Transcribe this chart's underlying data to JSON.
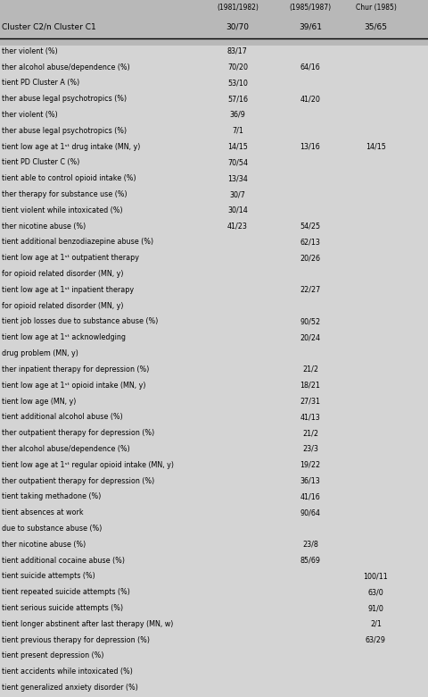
{
  "title_col1": "(1981/1982)",
  "title_col2": "(1985/1987)",
  "title_col3": "Chur (1985)",
  "header1": "Cluster C2/n Cluster C1",
  "header_cols": [
    "30/70",
    "39/61",
    "35/65"
  ],
  "bg_color": "#d4d4d4",
  "header_bg": "#b8b8b8",
  "rows": [
    {
      "label": "ther violent (%)",
      "col1": "83/17",
      "col2": "",
      "col3": ""
    },
    {
      "label": "ther alcohol abuse/dependence (%)",
      "col1": "70/20",
      "col2": "64/16",
      "col3": ""
    },
    {
      "label": "tient PD Cluster A (%)",
      "col1": "53/10",
      "col2": "",
      "col3": ""
    },
    {
      "label": "ther abuse legal psychotropics (%)",
      "col1": "57/16",
      "col2": "41/20",
      "col3": ""
    },
    {
      "label": "ther violent (%)",
      "col1": "36/9",
      "col2": "",
      "col3": ""
    },
    {
      "label": "ther abuse legal psychotropics (%)",
      "col1": "7/1",
      "col2": "",
      "col3": ""
    },
    {
      "label": "tient low age at 1ˢᵗ drug intake (MN, y)",
      "col1": "14/15",
      "col2": "13/16",
      "col3": "14/15"
    },
    {
      "label": "tient PD Cluster C (%)",
      "col1": "70/54",
      "col2": "",
      "col3": ""
    },
    {
      "label": "tient able to control opioid intake (%)",
      "col1": "13/34",
      "col2": "",
      "col3": ""
    },
    {
      "label": "ther therapy for substance use (%)",
      "col1": "30/7",
      "col2": "",
      "col3": ""
    },
    {
      "label": "tient violent while intoxicated (%)",
      "col1": "30/14",
      "col2": "",
      "col3": ""
    },
    {
      "label": "ther nicotine abuse (%)",
      "col1": "41/23",
      "col2": "54/25",
      "col3": ""
    },
    {
      "label": "tient additional benzodiazepine abuse (%)",
      "col1": "",
      "col2": "62/13",
      "col3": ""
    },
    {
      "label": "tient low age at 1ˢᵗ outpatient therapy",
      "col1": "",
      "col2": "20/26",
      "col3": ""
    },
    {
      "label": "for opioid related disorder (MN, y)",
      "col1": "",
      "col2": "",
      "col3": ""
    },
    {
      "label": "tient low age at 1ˢᵗ inpatient therapy",
      "col1": "",
      "col2": "22/27",
      "col3": ""
    },
    {
      "label": "for opioid related disorder (MN, y)",
      "col1": "",
      "col2": "",
      "col3": ""
    },
    {
      "label": "tient job losses due to substance abuse (%)",
      "col1": "",
      "col2": "90/52",
      "col3": ""
    },
    {
      "label": "tient low age at 1ˢᵗ acknowledging",
      "col1": "",
      "col2": "20/24",
      "col3": ""
    },
    {
      "label": "drug problem (MN, y)",
      "col1": "",
      "col2": "",
      "col3": ""
    },
    {
      "label": "ther inpatient therapy for depression (%)",
      "col1": "",
      "col2": "21/2",
      "col3": ""
    },
    {
      "label": "tient low age at 1ˢᵗ opioid intake (MN, y)",
      "col1": "",
      "col2": "18/21",
      "col3": ""
    },
    {
      "label": "tient low age (MN, y)",
      "col1": "",
      "col2": "27/31",
      "col3": ""
    },
    {
      "label": "tient additional alcohol abuse (%)",
      "col1": "",
      "col2": "41/13",
      "col3": ""
    },
    {
      "label": "ther outpatient therapy for depression (%)",
      "col1": "",
      "col2": "21/2",
      "col3": ""
    },
    {
      "label": "ther alcohol abuse/dependence (%)",
      "col1": "",
      "col2": "23/3",
      "col3": ""
    },
    {
      "label": "tient low age at 1ˢᵗ regular opioid intake (MN, y)",
      "col1": "",
      "col2": "19/22",
      "col3": ""
    },
    {
      "label": "ther outpatient therapy for depression (%)",
      "col1": "",
      "col2": "36/13",
      "col3": ""
    },
    {
      "label": "tient taking methadone (%)",
      "col1": "",
      "col2": "41/16",
      "col3": ""
    },
    {
      "label": "tient absences at work",
      "col1": "",
      "col2": "90/64",
      "col3": ""
    },
    {
      "label": "due to substance abuse (%)",
      "col1": "",
      "col2": "",
      "col3": ""
    },
    {
      "label": "ther nicotine abuse (%)",
      "col1": "",
      "col2": "23/8",
      "col3": ""
    },
    {
      "label": "tient additional cocaine abuse (%)",
      "col1": "",
      "col2": "85/69",
      "col3": ""
    },
    {
      "label": "tient suicide attempts (%)",
      "col1": "",
      "col2": "",
      "col3": "100/11"
    },
    {
      "label": "tient repeated suicide attempts (%)",
      "col1": "",
      "col2": "",
      "col3": "63/0"
    },
    {
      "label": "tient serious suicide attempts (%)",
      "col1": "",
      "col2": "",
      "col3": "91/0"
    },
    {
      "label": "tient longer abstinent after last therapy (MN, w)",
      "col1": "",
      "col2": "",
      "col3": "2/1"
    },
    {
      "label": "tient previous therapy for depression (%)",
      "col1": "",
      "col2": "",
      "col3": "63/29"
    },
    {
      "label": "tient present depression (%)",
      "col1": "",
      "col2": "",
      "col3": ""
    },
    {
      "label": "tient accidents while intoxicated (%)",
      "col1": "",
      "col2": "",
      "col3": ""
    },
    {
      "label": "tient generalized anxiety disorder (%)",
      "col1": "",
      "col2": "",
      "col3": ""
    }
  ]
}
